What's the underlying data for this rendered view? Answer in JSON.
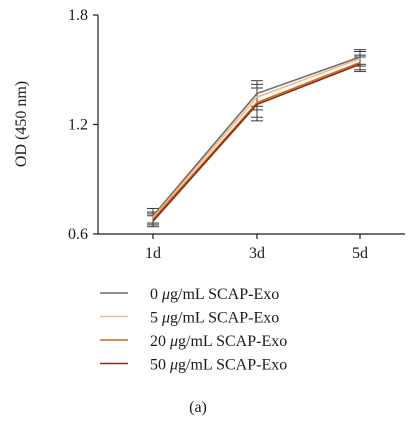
{
  "chart_data": {
    "type": "line",
    "ylabel": "OD (450 nm)",
    "caption": "(a)",
    "categories": [
      "1d",
      "3d",
      "5d"
    ],
    "ylim": [
      0.6,
      1.8
    ],
    "yticks": [
      "0.6",
      "1.2",
      "1.8"
    ],
    "series": [
      {
        "name_parts": [
          "0 ",
          "μ",
          "g/mL SCAP-Exo"
        ],
        "color": "#6e6e6e",
        "values": [
          0.7,
          1.37,
          1.57
        ],
        "errors": [
          0.04,
          0.07,
          0.04
        ]
      },
      {
        "name_parts": [
          "5 ",
          "μ",
          "g/mL SCAP-Exo"
        ],
        "color": "#f2b98a",
        "values": [
          0.69,
          1.35,
          1.56
        ],
        "errors": [
          0.03,
          0.07,
          0.04
        ]
      },
      {
        "name_parts": [
          "20 ",
          "μ",
          "g/mL SCAP-Exo"
        ],
        "color": "#d2691e",
        "values": [
          0.68,
          1.32,
          1.54
        ],
        "errors": [
          0.03,
          0.08,
          0.04
        ]
      },
      {
        "name_parts": [
          "50 ",
          "μ",
          "g/mL SCAP-Exo"
        ],
        "color": "#8b2d0c",
        "values": [
          0.67,
          1.31,
          1.53
        ],
        "errors": [
          0.03,
          0.09,
          0.04
        ]
      }
    ]
  }
}
